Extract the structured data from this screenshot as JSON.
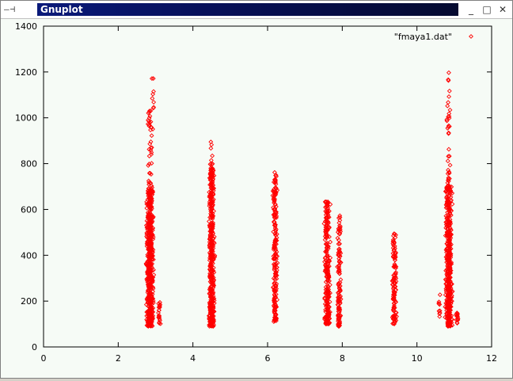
{
  "window": {
    "title": "Gnuplot",
    "left_controls": "—⊣",
    "min_label": "_",
    "max_label": "□",
    "close_label": "✕"
  },
  "chart_data": {
    "type": "scatter",
    "title": "",
    "xlabel": "",
    "ylabel": "",
    "xlim": [
      0,
      12
    ],
    "ylim": [
      0,
      1400
    ],
    "xticks": [
      0,
      2,
      4,
      6,
      8,
      10,
      12
    ],
    "yticks": [
      0,
      200,
      400,
      600,
      800,
      1000,
      1200,
      1400
    ],
    "xtick_labels": [
      "0",
      "2",
      "4",
      "6",
      "8",
      "10",
      "12"
    ],
    "ytick_labels": [
      "0",
      "200",
      "400",
      "600",
      "800",
      "1000",
      "1200",
      "1400"
    ],
    "grid": false,
    "legend_position": "top-right",
    "marker_color": "#ff0000",
    "series": [
      {
        "name": "\"fmaya1.dat\"",
        "clusters": [
          {
            "x_center": 2.85,
            "x_spread": 0.12,
            "y_min": 90,
            "y_max": 700,
            "count": 600
          },
          {
            "x_center": 2.85,
            "x_spread": 0.1,
            "y_min": 700,
            "y_max": 1040,
            "count": 40
          },
          {
            "x_center": 2.92,
            "x_spread": 0.04,
            "y_min": 1040,
            "y_max": 1200,
            "count": 8
          },
          {
            "x_center": 3.1,
            "x_spread": 0.06,
            "y_min": 100,
            "y_max": 200,
            "count": 20
          },
          {
            "x_center": 4.5,
            "x_spread": 0.1,
            "y_min": 90,
            "y_max": 800,
            "count": 450
          },
          {
            "x_center": 4.5,
            "x_spread": 0.05,
            "y_min": 800,
            "y_max": 900,
            "count": 5
          },
          {
            "x_center": 6.2,
            "x_spread": 0.08,
            "y_min": 110,
            "y_max": 780,
            "count": 200
          },
          {
            "x_center": 7.6,
            "x_spread": 0.1,
            "y_min": 100,
            "y_max": 640,
            "count": 260
          },
          {
            "x_center": 7.92,
            "x_spread": 0.06,
            "y_min": 90,
            "y_max": 580,
            "count": 120
          },
          {
            "x_center": 9.4,
            "x_spread": 0.08,
            "y_min": 100,
            "y_max": 500,
            "count": 110
          },
          {
            "x_center": 10.85,
            "x_spread": 0.12,
            "y_min": 90,
            "y_max": 700,
            "count": 450
          },
          {
            "x_center": 10.85,
            "x_spread": 0.06,
            "y_min": 700,
            "y_max": 1200,
            "count": 40
          },
          {
            "x_center": 11.08,
            "x_spread": 0.06,
            "y_min": 90,
            "y_max": 150,
            "count": 15
          },
          {
            "x_center": 10.6,
            "x_spread": 0.04,
            "y_min": 130,
            "y_max": 240,
            "count": 10
          }
        ]
      }
    ]
  }
}
